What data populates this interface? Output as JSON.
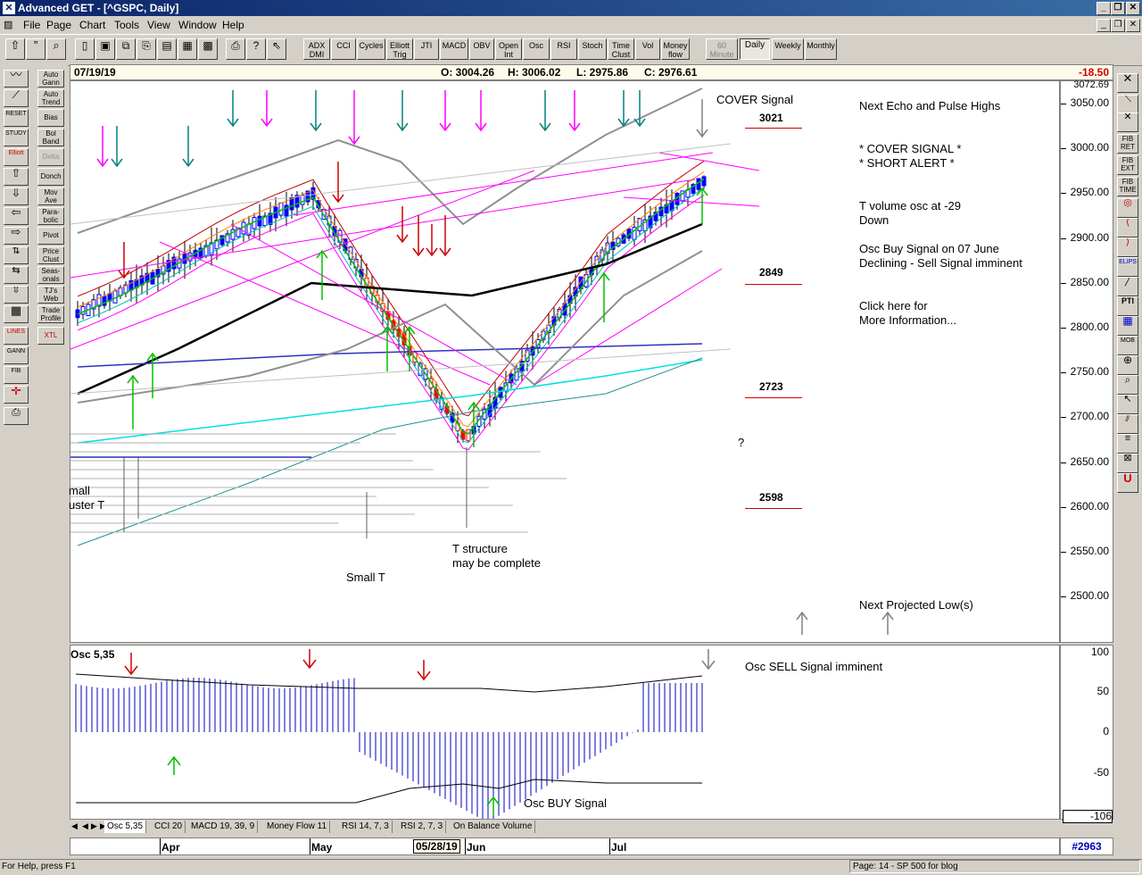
{
  "window": {
    "title": "Advanced GET - [^GSPC, Daily]"
  },
  "menu": [
    "File",
    "Page",
    "Chart",
    "Tools",
    "View",
    "Window",
    "Help"
  ],
  "toolbar_buttons": [
    "ADX DMI",
    "CCI",
    "Cycles",
    "Elliott Trig",
    "JTI",
    "MACD",
    "OBV",
    "Open Int",
    "Osc",
    "RSI",
    "Stoch",
    "Time Clust",
    "Vol",
    "Money flow",
    "60 Minute",
    "Daily",
    "Weekly",
    "Monthly"
  ],
  "left_tools_a": [
    "Auto Gann",
    "Auto Trend",
    "Bias",
    "Bol Band",
    "Delta",
    "Donch",
    "Mov Ave",
    "Para-bolic",
    "Pivot",
    "Price Clust",
    "Seas-onals",
    "TJ's Web",
    "Trade Profile",
    "XTL"
  ],
  "left_tools_icons": [
    "Elliott",
    "Reset",
    "Study",
    "Lines",
    "Gann",
    "Fib"
  ],
  "info": {
    "date": "07/19/19",
    "open": "O: 3004.26",
    "high": "H: 3006.02",
    "low": "L: 2975.86",
    "close": "C: 2976.61",
    "change": "-18.50"
  },
  "price_axis": {
    "top_value": "3072.69",
    "ticks": [
      "3050.00",
      "3000.00",
      "2950.00",
      "2900.00",
      "2850.00",
      "2800.00",
      "2750.00",
      "2700.00",
      "2650.00",
      "2600.00",
      "2550.00",
      "2500.00"
    ]
  },
  "annotations": {
    "cover_signal": "COVER Signal",
    "level_3021": "3021",
    "level_2849": "2849",
    "level_2723": "2723",
    "level_2598": "2598",
    "next_echo": "Next Echo and Pulse Highs",
    "cover_star": "* COVER SIGNAL *",
    "short_alert": "* SHORT ALERT *",
    "t_volume_1": "T volume osc at -29",
    "t_volume_2": "Down",
    "osc_buy_1": "Osc Buy Signal on 07 June",
    "osc_buy_2": "Declining - Sell Signal imminent",
    "click_1": "Click here for",
    "click_2": "More Information...",
    "small_cluster_1": "mall",
    "small_cluster_2": "uster T",
    "small_t": "Small T",
    "t_struct_1": "T structure",
    "t_struct_2": "may be complete",
    "next_low": "Next Projected Low(s)",
    "question": "?"
  },
  "osc": {
    "label": "Osc 5,35",
    "sell_text": "Osc SELL Signal imminent",
    "buy_text": "Osc BUY Signal",
    "ticks": [
      "100",
      "50",
      "0",
      "-50"
    ],
    "current": "-106"
  },
  "tabs": [
    "Osc 5,35",
    "CCI 20",
    "MACD 19, 39, 9",
    "Money Flow 11",
    "RSI 14, 7, 3",
    "RSI 2, 7, 3",
    "On Balance Volume"
  ],
  "date_axis": {
    "labels": [
      "Apr",
      "May",
      "05/28/19",
      "Jun",
      "Jul"
    ],
    "bar_number": "#2963"
  },
  "status": {
    "left": "For Help, press F1",
    "right": "Page: 14 - SP 500 for blog"
  }
}
